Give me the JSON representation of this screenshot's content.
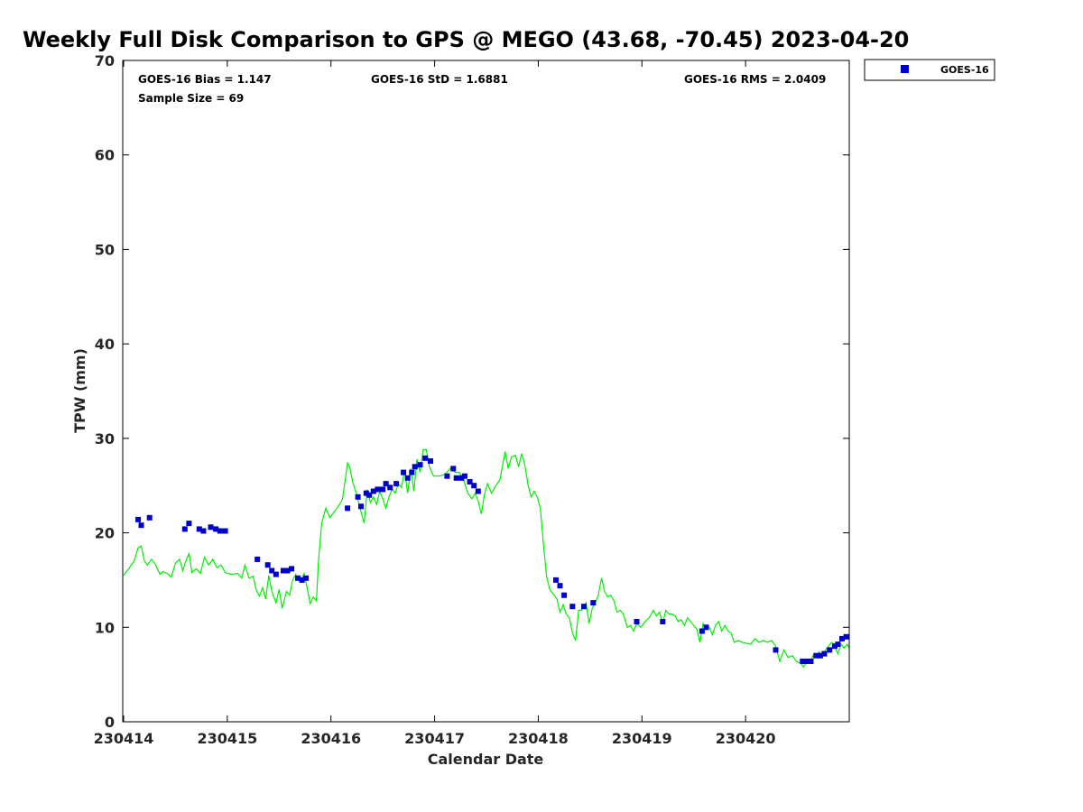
{
  "chart_data": {
    "type": "scatter",
    "title": "Weekly Full Disk Comparison to GPS @ MEGO (43.68, -70.45) 2023-04-20",
    "xlabel": "Calendar Date",
    "ylabel": "TPW (mm)",
    "xlim": [
      0,
      7
    ],
    "ylim": [
      0,
      70
    ],
    "x_ticks": [
      {
        "v": 0,
        "label": "230414"
      },
      {
        "v": 1,
        "label": "230415"
      },
      {
        "v": 2,
        "label": "230416"
      },
      {
        "v": 3,
        "label": "230417"
      },
      {
        "v": 4,
        "label": "230418"
      },
      {
        "v": 5,
        "label": "230419"
      },
      {
        "v": 6,
        "label": "230420"
      }
    ],
    "y_ticks": [
      0,
      10,
      20,
      30,
      40,
      50,
      60,
      70
    ],
    "x_unit_note": "x = days after 230414",
    "stats": {
      "bias": "GOES-16 Bias = 1.147",
      "std": "GOES-16 StD = 1.6881",
      "rms": "GOES-16 RMS = 2.0409",
      "sample": "Sample Size = 69"
    },
    "legend": {
      "position": "top-right-outside",
      "entries": [
        {
          "name": "GOES-16",
          "color": "#0000cc",
          "marker": "square"
        }
      ]
    },
    "series": [
      {
        "name": "GOES-16",
        "kind": "scatter",
        "color": "#0000cc",
        "points": [
          [
            0.14,
            21.4
          ],
          [
            0.17,
            20.8
          ],
          [
            0.25,
            21.6
          ],
          [
            0.59,
            20.4
          ],
          [
            0.63,
            21.0
          ],
          [
            0.73,
            20.4
          ],
          [
            0.77,
            20.2
          ],
          [
            0.84,
            20.6
          ],
          [
            0.89,
            20.4
          ],
          [
            0.93,
            20.2
          ],
          [
            0.98,
            20.2
          ],
          [
            1.29,
            17.2
          ],
          [
            1.39,
            16.6
          ],
          [
            1.43,
            16.0
          ],
          [
            1.47,
            15.6
          ],
          [
            1.54,
            16.0
          ],
          [
            1.58,
            16.0
          ],
          [
            1.62,
            16.2
          ],
          [
            1.68,
            15.2
          ],
          [
            1.72,
            15.0
          ],
          [
            1.76,
            15.2
          ],
          [
            2.16,
            22.6
          ],
          [
            2.26,
            23.8
          ],
          [
            2.29,
            22.8
          ],
          [
            2.34,
            24.2
          ],
          [
            2.37,
            24.0
          ],
          [
            2.41,
            24.4
          ],
          [
            2.45,
            24.6
          ],
          [
            2.5,
            24.6
          ],
          [
            2.53,
            25.2
          ],
          [
            2.57,
            24.8
          ],
          [
            2.63,
            25.2
          ],
          [
            2.7,
            26.4
          ],
          [
            2.74,
            25.8
          ],
          [
            2.78,
            26.4
          ],
          [
            2.81,
            27.0
          ],
          [
            2.86,
            27.2
          ],
          [
            2.91,
            27.9
          ],
          [
            2.96,
            27.6
          ],
          [
            3.12,
            26.0
          ],
          [
            3.18,
            26.8
          ],
          [
            3.21,
            25.8
          ],
          [
            3.26,
            25.8
          ],
          [
            3.29,
            26.0
          ],
          [
            3.34,
            25.4
          ],
          [
            3.38,
            25.0
          ],
          [
            3.42,
            24.4
          ],
          [
            4.17,
            15.0
          ],
          [
            4.21,
            14.4
          ],
          [
            4.25,
            13.4
          ],
          [
            4.33,
            12.2
          ],
          [
            4.44,
            12.2
          ],
          [
            4.53,
            12.6
          ],
          [
            4.95,
            10.6
          ],
          [
            5.2,
            10.6
          ],
          [
            5.58,
            9.6
          ],
          [
            5.62,
            10.0
          ],
          [
            6.29,
            7.6
          ],
          [
            6.55,
            6.4
          ],
          [
            6.59,
            6.4
          ],
          [
            6.63,
            6.4
          ],
          [
            6.68,
            7.0
          ],
          [
            6.72,
            7.0
          ],
          [
            6.76,
            7.2
          ],
          [
            6.81,
            7.6
          ],
          [
            6.86,
            8.0
          ],
          [
            6.89,
            8.2
          ],
          [
            6.93,
            8.8
          ],
          [
            6.97,
            9.0
          ]
        ]
      },
      {
        "name": "",
        "kind": "line",
        "color": "#00ee00",
        "points": [
          [
            0.0,
            15.5
          ],
          [
            0.05,
            16.2
          ],
          [
            0.1,
            17.0
          ],
          [
            0.14,
            18.4
          ],
          [
            0.17,
            18.6
          ],
          [
            0.2,
            17.0
          ],
          [
            0.23,
            16.6
          ],
          [
            0.27,
            17.2
          ],
          [
            0.31,
            16.6
          ],
          [
            0.35,
            15.6
          ],
          [
            0.38,
            15.9
          ],
          [
            0.42,
            15.7
          ],
          [
            0.46,
            15.3
          ],
          [
            0.5,
            16.8
          ],
          [
            0.54,
            17.2
          ],
          [
            0.57,
            16.0
          ],
          [
            0.6,
            17.0
          ],
          [
            0.63,
            17.8
          ],
          [
            0.66,
            15.8
          ],
          [
            0.7,
            16.2
          ],
          [
            0.74,
            15.7
          ],
          [
            0.78,
            17.4
          ],
          [
            0.82,
            16.6
          ],
          [
            0.86,
            17.2
          ],
          [
            0.9,
            16.3
          ],
          [
            0.94,
            16.6
          ],
          [
            0.98,
            15.8
          ],
          [
            1.04,
            15.6
          ],
          [
            1.1,
            15.7
          ],
          [
            1.14,
            15.2
          ],
          [
            1.17,
            16.6
          ],
          [
            1.21,
            15.2
          ],
          [
            1.25,
            15.4
          ],
          [
            1.28,
            13.9
          ],
          [
            1.31,
            13.3
          ],
          [
            1.34,
            14.2
          ],
          [
            1.37,
            13.0
          ],
          [
            1.4,
            15.5
          ],
          [
            1.43,
            13.8
          ],
          [
            1.47,
            12.6
          ],
          [
            1.5,
            14.0
          ],
          [
            1.53,
            12.0
          ],
          [
            1.57,
            13.8
          ],
          [
            1.6,
            13.4
          ],
          [
            1.63,
            15.0
          ],
          [
            1.66,
            15.6
          ],
          [
            1.7,
            14.8
          ],
          [
            1.74,
            15.7
          ],
          [
            1.77,
            14.2
          ],
          [
            1.8,
            12.5
          ],
          [
            1.83,
            13.2
          ],
          [
            1.86,
            12.8
          ],
          [
            1.88,
            17.0
          ],
          [
            1.91,
            21.0
          ],
          [
            1.95,
            22.6
          ],
          [
            1.99,
            21.6
          ],
          [
            2.03,
            22.2
          ],
          [
            2.07,
            22.8
          ],
          [
            2.11,
            23.5
          ],
          [
            2.14,
            25.8
          ],
          [
            2.16,
            27.4
          ],
          [
            2.18,
            27.0
          ],
          [
            2.21,
            25.4
          ],
          [
            2.25,
            24.0
          ],
          [
            2.28,
            22.6
          ],
          [
            2.32,
            21.0
          ],
          [
            2.35,
            24.6
          ],
          [
            2.38,
            23.2
          ],
          [
            2.41,
            23.8
          ],
          [
            2.44,
            23.0
          ],
          [
            2.47,
            24.4
          ],
          [
            2.5,
            23.6
          ],
          [
            2.53,
            22.6
          ],
          [
            2.56,
            23.8
          ],
          [
            2.59,
            24.6
          ],
          [
            2.62,
            24.2
          ],
          [
            2.65,
            25.2
          ],
          [
            2.68,
            24.8
          ],
          [
            2.71,
            26.6
          ],
          [
            2.74,
            24.2
          ],
          [
            2.77,
            26.8
          ],
          [
            2.8,
            24.4
          ],
          [
            2.83,
            27.8
          ],
          [
            2.86,
            26.4
          ],
          [
            2.89,
            28.8
          ],
          [
            2.92,
            28.8
          ],
          [
            2.95,
            27.0
          ],
          [
            2.99,
            26.0
          ],
          [
            3.05,
            26.0
          ],
          [
            3.1,
            26.2
          ],
          [
            3.15,
            26.8
          ],
          [
            3.2,
            26.4
          ],
          [
            3.24,
            26.4
          ],
          [
            3.28,
            25.6
          ],
          [
            3.32,
            24.2
          ],
          [
            3.36,
            23.6
          ],
          [
            3.39,
            24.2
          ],
          [
            3.42,
            23.4
          ],
          [
            3.45,
            22.0
          ],
          [
            3.48,
            24.0
          ],
          [
            3.51,
            25.2
          ],
          [
            3.55,
            24.2
          ],
          [
            3.59,
            25.0
          ],
          [
            3.63,
            25.6
          ],
          [
            3.66,
            27.4
          ],
          [
            3.68,
            28.6
          ],
          [
            3.71,
            26.8
          ],
          [
            3.74,
            28.0
          ],
          [
            3.78,
            28.2
          ],
          [
            3.81,
            27.0
          ],
          [
            3.84,
            28.4
          ],
          [
            3.87,
            27.2
          ],
          [
            3.9,
            25.2
          ],
          [
            3.93,
            23.8
          ],
          [
            3.96,
            24.4
          ],
          [
            3.99,
            23.8
          ],
          [
            4.02,
            22.6
          ],
          [
            4.05,
            18.8
          ],
          [
            4.08,
            15.4
          ],
          [
            4.11,
            14.0
          ],
          [
            4.14,
            13.6
          ],
          [
            4.18,
            13.0
          ],
          [
            4.21,
            11.6
          ],
          [
            4.24,
            12.4
          ],
          [
            4.27,
            11.4
          ],
          [
            4.3,
            11.0
          ],
          [
            4.33,
            9.4
          ],
          [
            4.36,
            8.6
          ],
          [
            4.39,
            11.8
          ],
          [
            4.42,
            11.8
          ],
          [
            4.46,
            12.6
          ],
          [
            4.49,
            10.4
          ],
          [
            4.52,
            12.0
          ],
          [
            4.55,
            12.6
          ],
          [
            4.58,
            13.4
          ],
          [
            4.61,
            15.2
          ],
          [
            4.64,
            13.8
          ],
          [
            4.67,
            13.2
          ],
          [
            4.7,
            13.4
          ],
          [
            4.73,
            12.8
          ],
          [
            4.76,
            11.6
          ],
          [
            4.79,
            11.8
          ],
          [
            4.82,
            11.4
          ],
          [
            4.86,
            10.0
          ],
          [
            4.89,
            10.2
          ],
          [
            4.92,
            9.6
          ],
          [
            4.95,
            10.4
          ],
          [
            4.99,
            10.0
          ],
          [
            5.03,
            10.6
          ],
          [
            5.07,
            11.0
          ],
          [
            5.11,
            11.8
          ],
          [
            5.14,
            11.2
          ],
          [
            5.17,
            11.6
          ],
          [
            5.2,
            10.4
          ],
          [
            5.23,
            11.8
          ],
          [
            5.26,
            11.4
          ],
          [
            5.29,
            11.4
          ],
          [
            5.32,
            11.2
          ],
          [
            5.35,
            10.6
          ],
          [
            5.38,
            10.8
          ],
          [
            5.41,
            10.2
          ],
          [
            5.44,
            11.0
          ],
          [
            5.47,
            10.6
          ],
          [
            5.5,
            10.2
          ],
          [
            5.53,
            9.8
          ],
          [
            5.56,
            8.4
          ],
          [
            5.59,
            10.4
          ],
          [
            5.62,
            9.8
          ],
          [
            5.65,
            10.0
          ],
          [
            5.68,
            9.2
          ],
          [
            5.71,
            10.2
          ],
          [
            5.74,
            10.6
          ],
          [
            5.77,
            9.6
          ],
          [
            5.8,
            10.2
          ],
          [
            5.83,
            9.6
          ],
          [
            5.86,
            9.4
          ],
          [
            5.89,
            8.4
          ],
          [
            5.93,
            8.6
          ],
          [
            5.97,
            8.4
          ],
          [
            6.01,
            8.3
          ],
          [
            6.05,
            8.2
          ],
          [
            6.09,
            8.8
          ],
          [
            6.13,
            8.4
          ],
          [
            6.17,
            8.6
          ],
          [
            6.21,
            8.4
          ],
          [
            6.25,
            8.6
          ],
          [
            6.29,
            8.0
          ],
          [
            6.33,
            6.4
          ],
          [
            6.37,
            7.6
          ],
          [
            6.41,
            6.8
          ],
          [
            6.45,
            7.0
          ],
          [
            6.49,
            6.4
          ],
          [
            6.53,
            6.2
          ],
          [
            6.56,
            5.8
          ],
          [
            6.59,
            6.4
          ],
          [
            6.62,
            6.2
          ],
          [
            6.65,
            7.0
          ],
          [
            6.68,
            6.8
          ],
          [
            6.71,
            7.4
          ],
          [
            6.74,
            6.8
          ],
          [
            6.77,
            7.6
          ],
          [
            6.8,
            8.0
          ],
          [
            6.83,
            8.4
          ],
          [
            6.86,
            8.0
          ],
          [
            6.89,
            7.2
          ],
          [
            6.92,
            8.2
          ],
          [
            6.95,
            7.8
          ],
          [
            6.98,
            8.2
          ],
          [
            7.0,
            7.8
          ]
        ]
      }
    ]
  }
}
